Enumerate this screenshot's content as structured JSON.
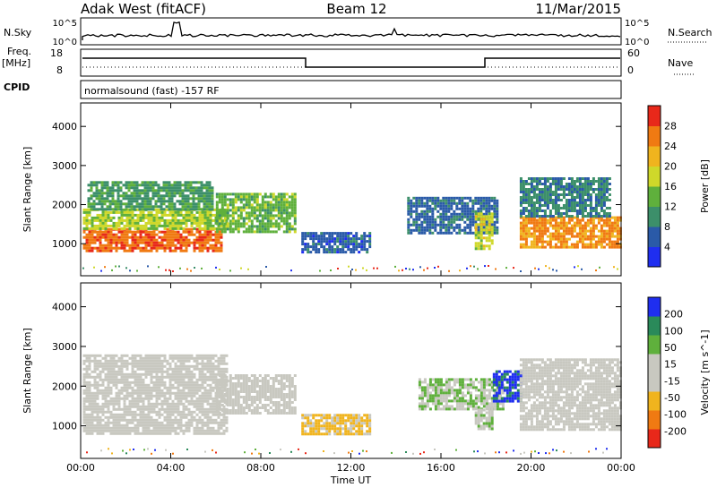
{
  "header": {
    "radar": "Adak West (fitACF)",
    "beam": "Beam 12",
    "date": "11/Mar/2015"
  },
  "panels": {
    "nsky": {
      "label": "N.Sky",
      "tick_top": "10^5",
      "tick_bottom": "10^0",
      "right_label": "N.Search",
      "right_tick_top": "10^5",
      "right_tick_bottom": "10^0"
    },
    "freq": {
      "label1": "Freq.",
      "label2": "[MHz]",
      "tick_top": "18",
      "tick_bottom": "8",
      "right_label": "Nave",
      "right_tick_top": "60",
      "right_tick_bottom": "0"
    },
    "cpid": {
      "label": "CPID",
      "text": "normalsound (fast) -157 RF"
    }
  },
  "colors": {
    "power": [
      "#1f2ef0",
      "#2a5aa8",
      "#3c8f6a",
      "#5fb03c",
      "#cfd82a",
      "#f0b41e",
      "#f07a12",
      "#e8281a"
    ],
    "velocity": [
      "#e8281a",
      "#f07a12",
      "#f0b41e",
      "#c8c8c0",
      "#c8c8c0",
      "#5fb03c",
      "#2a8a5a",
      "#1f2ef0"
    ]
  },
  "chart_data": [
    {
      "type": "heatmap",
      "name": "power",
      "ylabel": "Slant Range [km]",
      "y_ticks": [
        1000,
        2000,
        3000,
        4000
      ],
      "ylim": [
        180,
        4600
      ],
      "x_ticks": [
        "00:00",
        "04:00",
        "08:00",
        "12:00",
        "16:00",
        "20:00",
        "00:00"
      ],
      "xlim_hours": [
        0,
        24
      ],
      "colorbar": {
        "label": "Power [dB]",
        "ticks": [
          "4",
          "8",
          "12",
          "16",
          "20",
          "24",
          "28"
        ],
        "range": [
          0,
          32
        ]
      },
      "regions": [
        {
          "t0": 0.1,
          "t1": 6.2,
          "r0": 800,
          "r1": 1400,
          "v": 27
        },
        {
          "t0": 0.1,
          "t1": 6.5,
          "r0": 1400,
          "r1": 1900,
          "v": 17
        },
        {
          "t0": 0.3,
          "t1": 5.8,
          "r0": 1900,
          "r1": 2600,
          "v": 11
        },
        {
          "t0": 6.0,
          "t1": 9.5,
          "r0": 1300,
          "r1": 2300,
          "v": 14
        },
        {
          "t0": 9.8,
          "t1": 12.8,
          "r0": 800,
          "r1": 1300,
          "v": 6
        },
        {
          "t0": 14.5,
          "t1": 18.5,
          "r0": 1300,
          "r1": 2200,
          "v": 7
        },
        {
          "t0": 17.5,
          "t1": 18.3,
          "r0": 900,
          "r1": 1800,
          "v": 18
        },
        {
          "t0": 19.5,
          "t1": 24.0,
          "r0": 900,
          "r1": 1700,
          "v": 25
        },
        {
          "t0": 19.5,
          "t1": 23.5,
          "r0": 1700,
          "r1": 2700,
          "v": 9
        }
      ]
    },
    {
      "type": "heatmap",
      "name": "velocity",
      "ylabel": "Slant Range [km]",
      "y_ticks": [
        1000,
        2000,
        3000,
        4000
      ],
      "ylim": [
        180,
        4600
      ],
      "x_ticks": [
        "00:00",
        "04:00",
        "08:00",
        "12:00",
        "16:00",
        "20:00",
        "00:00"
      ],
      "xlabel": "Time UT",
      "xlim_hours": [
        0,
        24
      ],
      "colorbar": {
        "label": "Velocity [m s^-1]",
        "ticks": [
          "-200",
          "-100",
          "-50",
          "-15",
          "15",
          "50",
          "100",
          "200"
        ],
        "range": [
          -250,
          250
        ]
      },
      "regions": [
        {
          "t0": 0.1,
          "t1": 6.5,
          "r0": 800,
          "r1": 2800,
          "v": 0
        },
        {
          "t0": 6.0,
          "t1": 9.5,
          "r0": 1300,
          "r1": 2300,
          "v": 0
        },
        {
          "t0": 9.8,
          "t1": 12.8,
          "r0": 800,
          "r1": 1300,
          "v": -80
        },
        {
          "t0": 15.0,
          "t1": 18.8,
          "r0": 1400,
          "r1": 2200,
          "v": 60
        },
        {
          "t0": 17.5,
          "t1": 18.3,
          "r0": 900,
          "r1": 1500,
          "v": 40
        },
        {
          "t0": 18.3,
          "t1": 19.5,
          "r0": 1600,
          "r1": 2400,
          "v": 200
        },
        {
          "t0": 19.5,
          "t1": 24.0,
          "r0": 900,
          "r1": 2700,
          "v": 0
        }
      ]
    }
  ]
}
